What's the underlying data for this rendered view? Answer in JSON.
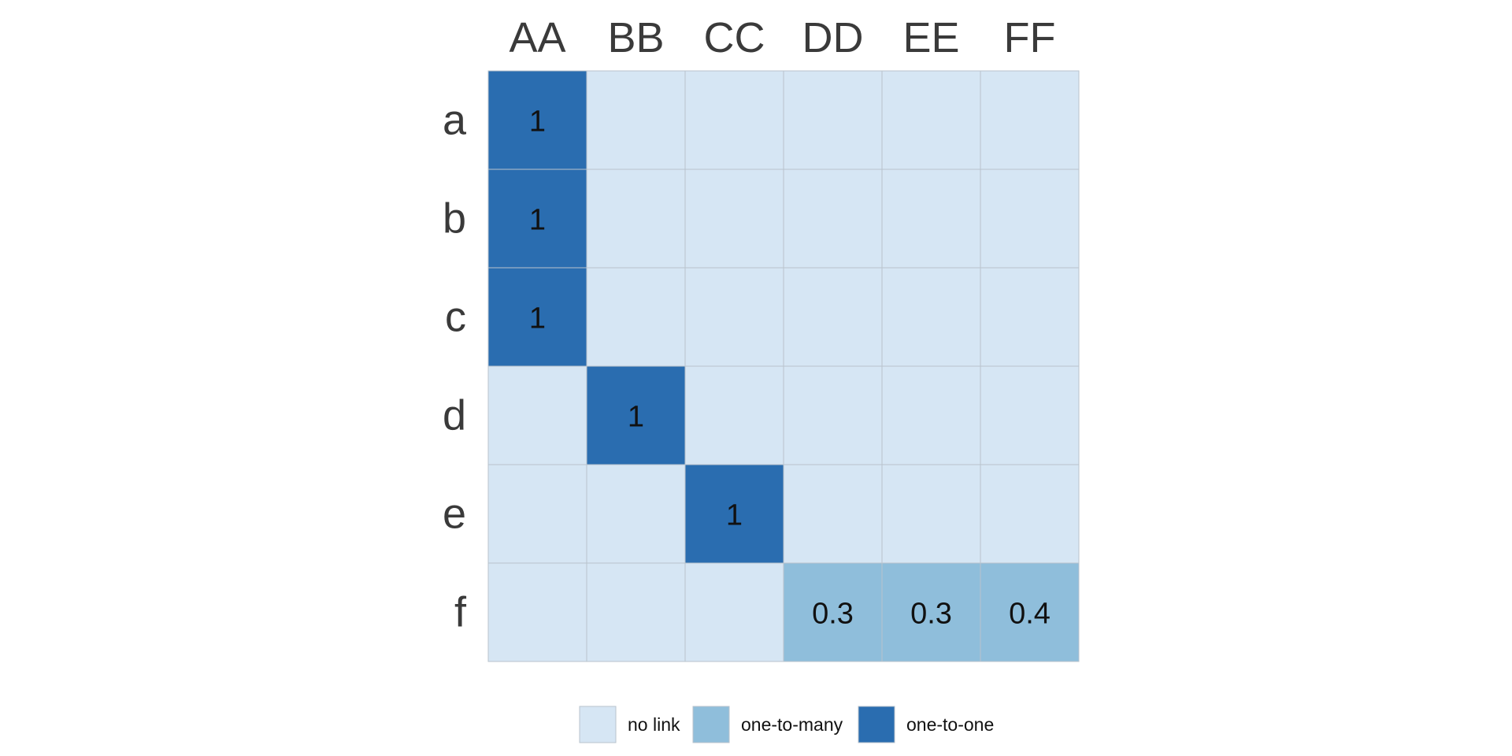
{
  "chart_data": {
    "type": "heatmap",
    "title": "",
    "x_labels": [
      "AA",
      "BB",
      "CC",
      "DD",
      "EE",
      "FF"
    ],
    "y_labels": [
      "a",
      "b",
      "c",
      "d",
      "e",
      "f"
    ],
    "values": [
      [
        1,
        0,
        0,
        0,
        0,
        0
      ],
      [
        1,
        0,
        0,
        0,
        0,
        0
      ],
      [
        1,
        0,
        0,
        0,
        0,
        0
      ],
      [
        0,
        1,
        0,
        0,
        0,
        0
      ],
      [
        0,
        0,
        1,
        0,
        0,
        0
      ],
      [
        0,
        0,
        0,
        0.3,
        0.3,
        0.4
      ]
    ],
    "cell_text": [
      [
        "1",
        "",
        "",
        "",
        "",
        ""
      ],
      [
        "1",
        "",
        "",
        "",
        "",
        ""
      ],
      [
        "1",
        "",
        "",
        "",
        "",
        ""
      ],
      [
        "",
        "1",
        "",
        "",
        "",
        ""
      ],
      [
        "",
        "",
        "1",
        "",
        "",
        ""
      ],
      [
        "",
        "",
        "",
        "0.3",
        "0.3",
        "0.4"
      ]
    ],
    "categories": [
      [
        1,
        0,
        0,
        0,
        0,
        0
      ],
      [
        1,
        0,
        0,
        0,
        0,
        0
      ],
      [
        1,
        0,
        0,
        0,
        0,
        0
      ],
      [
        0,
        1,
        0,
        0,
        0,
        0
      ],
      [
        0,
        0,
        1,
        0,
        0,
        0
      ],
      [
        0,
        0,
        0,
        2,
        2,
        2
      ]
    ],
    "legend": {
      "position": "bottom",
      "entries": [
        {
          "label": "no link",
          "color": "#d6e6f4"
        },
        {
          "label": "one-to-one",
          "color": "#2a6db0"
        },
        {
          "label": "one-to-many",
          "color": "#8fbedb"
        }
      ],
      "order": [
        0,
        2,
        1
      ]
    },
    "colors": {
      "no_link": "#d6e6f4",
      "one_to_one": "#2a6db0",
      "one_to_many": "#8fbedb",
      "grid": "#b9c3cc",
      "axis_text": "#3a3a3a",
      "cell_text": "#111111"
    },
    "x_axis_position": "top",
    "grid": true
  }
}
